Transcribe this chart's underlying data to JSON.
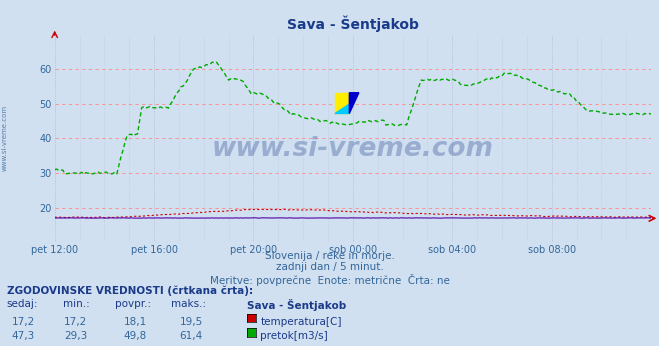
{
  "title": "Sava - Šentjakob",
  "background_color": "#d0e0f0",
  "plot_bg_color": "#d0e0f0",
  "grid_color_h": "#ff8888",
  "grid_color_v": "#aaaacc",
  "x_labels": [
    "pet 12:00",
    "pet 16:00",
    "pet 20:00",
    "sob 00:00",
    "sob 04:00",
    "sob 08:00"
  ],
  "x_ticks": [
    0,
    48,
    96,
    144,
    192,
    240
  ],
  "x_max": 288,
  "y_min": 10,
  "y_max": 70,
  "y_ticks": [
    20,
    30,
    40,
    50,
    60
  ],
  "temp_color": "#cc0000",
  "flow_color": "#00aa00",
  "height_color": "#5500aa",
  "subtitle_lines": [
    "Slovenija / reke in morje.",
    "zadnji dan / 5 minut.",
    "Meritve: povprečne  Enote: metrične  Črta: ne"
  ],
  "table_header": "ZGODOVINSKE VREDNOSTI (črtkana črta):",
  "col_headers": [
    "sedaj:",
    "min.:",
    "povpr.:",
    "maks.:",
    "Sava - Šentjakob"
  ],
  "row1": [
    "17,2",
    "17,2",
    "18,1",
    "19,5"
  ],
  "row1_label": "temperatura[C]",
  "row1_color": "#cc0000",
  "row2": [
    "47,3",
    "29,3",
    "49,8",
    "61,4"
  ],
  "row2_label": "pretok[m3/s]",
  "row2_color": "#00aa00",
  "watermark": "www.si-vreme.com",
  "watermark_color": "#1a3a8a",
  "left_label": "www.si-vreme.com"
}
